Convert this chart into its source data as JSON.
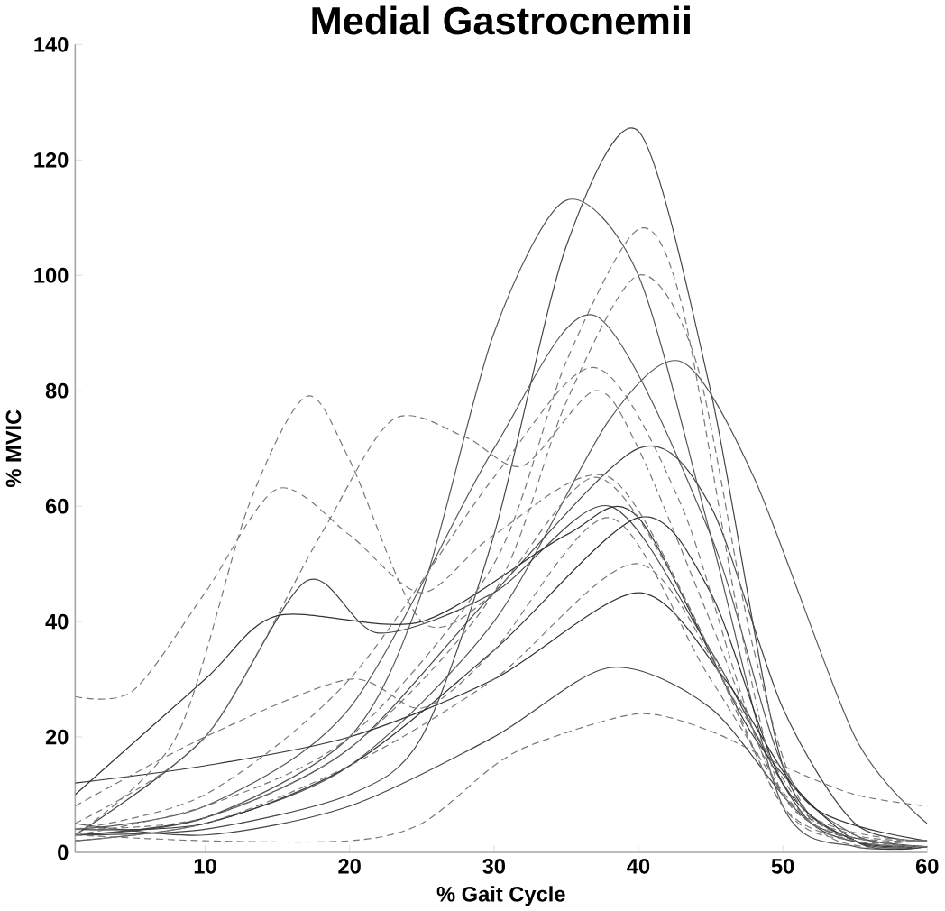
{
  "chart_data": {
    "type": "line",
    "title": "Medial Gastrocnemii",
    "xlabel": "% Gait Cycle",
    "ylabel": "% MVIC",
    "xlim": [
      1,
      60
    ],
    "ylim": [
      0,
      140
    ],
    "xticks": [
      10,
      20,
      30,
      40,
      50,
      60
    ],
    "yticks": [
      0,
      20,
      40,
      60,
      80,
      100,
      120,
      140
    ],
    "grid": false,
    "marker": "none",
    "line_style": "solid",
    "series": [
      {
        "color": "#555555",
        "x": [
          1,
          10,
          20,
          25,
          30,
          35,
          40,
          45,
          50,
          55,
          60
        ],
        "values": [
          3,
          6,
          20,
          45,
          90,
          113,
          100,
          55,
          8,
          1,
          1
        ]
      },
      {
        "color": "#444444",
        "x": [
          1,
          10,
          20,
          25,
          30,
          35,
          40,
          45,
          50,
          55,
          60
        ],
        "values": [
          3,
          4,
          10,
          20,
          55,
          105,
          125,
          80,
          15,
          2,
          1
        ]
      },
      {
        "color": "#555555",
        "x": [
          1,
          10,
          20,
          30,
          37,
          45,
          50,
          55,
          60
        ],
        "values": [
          4,
          8,
          25,
          70,
          93,
          55,
          15,
          3,
          1
        ]
      },
      {
        "color": "#555555",
        "x": [
          1,
          10,
          20,
          30,
          38,
          43,
          48,
          55,
          60
        ],
        "values": [
          2,
          5,
          15,
          40,
          75,
          85,
          65,
          20,
          5
        ]
      },
      {
        "color": "#444444",
        "x": [
          1,
          10,
          20,
          30,
          40,
          45,
          50,
          55,
          60
        ],
        "values": [
          3,
          6,
          18,
          45,
          70,
          60,
          25,
          5,
          2
        ]
      },
      {
        "color": "#333333",
        "x": [
          1,
          10,
          20,
          30,
          40,
          45,
          50,
          55,
          60
        ],
        "values": [
          4,
          5,
          15,
          35,
          58,
          45,
          12,
          2,
          1
        ]
      },
      {
        "color": "#444444",
        "x": [
          1,
          10,
          17,
          22,
          30,
          38,
          45,
          52,
          60
        ],
        "values": [
          3,
          20,
          47,
          38,
          45,
          60,
          35,
          5,
          1
        ]
      },
      {
        "color": "#333333",
        "x": [
          1,
          10,
          15,
          25,
          35,
          40,
          48,
          55,
          60
        ],
        "values": [
          10,
          30,
          41,
          40,
          55,
          58,
          20,
          2,
          1
        ]
      },
      {
        "color": "#444444",
        "x": [
          1,
          10,
          20,
          30,
          38,
          45,
          52,
          60
        ],
        "values": [
          5,
          3,
          8,
          20,
          32,
          25,
          5,
          1
        ]
      },
      {
        "color": "#333333",
        "x": [
          1,
          10,
          20,
          30,
          40,
          46,
          52,
          60
        ],
        "values": [
          12,
          15,
          20,
          30,
          45,
          30,
          8,
          2
        ]
      },
      {
        "color": "#777777",
        "line_style": "dashed",
        "x": [
          1,
          8,
          13,
          17,
          20,
          25,
          30,
          37,
          43,
          50,
          55,
          60
        ],
        "values": [
          3,
          20,
          60,
          79,
          68,
          40,
          45,
          65,
          45,
          8,
          2,
          2
        ]
      },
      {
        "color": "#777777",
        "line_style": "dashed",
        "x": [
          1,
          10,
          18,
          23,
          28,
          32,
          37,
          40,
          45,
          50,
          55,
          60
        ],
        "values": [
          5,
          20,
          55,
          75,
          72,
          67,
          80,
          70,
          40,
          10,
          3,
          2
        ]
      },
      {
        "color": "#777777",
        "line_style": "dashed",
        "x": [
          1,
          10,
          20,
          30,
          35,
          40,
          43,
          47,
          50,
          55,
          60
        ],
        "values": [
          3,
          8,
          20,
          50,
          85,
          108,
          95,
          40,
          10,
          2,
          1
        ]
      },
      {
        "color": "#777777",
        "line_style": "dashed",
        "x": [
          1,
          10,
          20,
          30,
          35,
          40,
          44,
          48,
          52,
          60
        ],
        "values": [
          4,
          6,
          18,
          45,
          78,
          100,
          85,
          35,
          6,
          1
        ]
      },
      {
        "color": "#777777",
        "line_style": "dashed",
        "x": [
          1,
          10,
          20,
          30,
          37,
          43,
          50,
          60
        ],
        "values": [
          4,
          10,
          30,
          65,
          84,
          60,
          10,
          2
        ]
      },
      {
        "color": "#777777",
        "line_style": "dashed",
        "x": [
          1,
          5,
          10,
          15,
          20,
          25,
          30,
          38,
          45,
          50,
          55,
          60
        ],
        "values": [
          27,
          28,
          45,
          63,
          55,
          45,
          55,
          65,
          35,
          8,
          2,
          1
        ]
      },
      {
        "color": "#777777",
        "line_style": "dashed",
        "x": [
          1,
          10,
          20,
          25,
          30,
          33,
          40,
          45,
          50,
          55,
          60
        ],
        "values": [
          3,
          2,
          2,
          5,
          15,
          19,
          24,
          21,
          15,
          10,
          8
        ]
      },
      {
        "color": "#777777",
        "line_style": "dashed",
        "x": [
          1,
          10,
          20,
          25,
          30,
          38,
          45,
          52,
          60
        ],
        "values": [
          8,
          20,
          30,
          25,
          35,
          58,
          30,
          5,
          2
        ]
      },
      {
        "color": "#777777",
        "line_style": "dashed",
        "x": [
          1,
          10,
          20,
          30,
          40,
          47,
          53,
          60
        ],
        "values": [
          2,
          5,
          15,
          30,
          50,
          25,
          3,
          1
        ]
      }
    ]
  }
}
